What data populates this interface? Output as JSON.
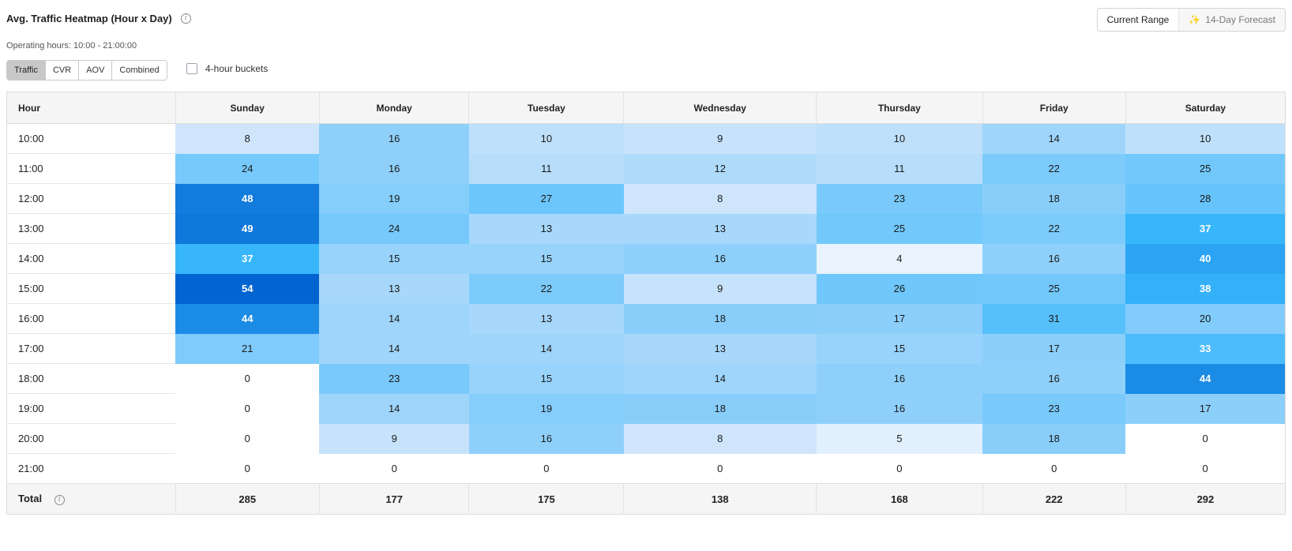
{
  "header": {
    "title": "Avg. Traffic Heatmap (Hour x Day)",
    "operating_hours": "Operating hours: 10:00 - 21:00:00"
  },
  "range_toggle": {
    "current": "Current Range",
    "forecast": "14-Day Forecast"
  },
  "metric_tabs": [
    {
      "label": "Traffic",
      "active": true
    },
    {
      "label": "CVR",
      "active": false
    },
    {
      "label": "AOV",
      "active": false
    },
    {
      "label": "Combined",
      "active": false
    }
  ],
  "bucket_toggle": {
    "label": "4-hour buckets",
    "checked": false
  },
  "table": {
    "hour_header": "Hour",
    "days": [
      "Sunday",
      "Monday",
      "Tuesday",
      "Wednesday",
      "Thursday",
      "Friday",
      "Saturday"
    ],
    "rows": [
      {
        "hour": "10:00",
        "values": [
          8,
          16,
          10,
          9,
          10,
          14,
          10
        ]
      },
      {
        "hour": "11:00",
        "values": [
          24,
          16,
          11,
          12,
          11,
          22,
          25
        ]
      },
      {
        "hour": "12:00",
        "values": [
          48,
          19,
          27,
          8,
          23,
          18,
          28
        ]
      },
      {
        "hour": "13:00",
        "values": [
          49,
          24,
          13,
          13,
          25,
          22,
          37
        ]
      },
      {
        "hour": "14:00",
        "values": [
          37,
          15,
          15,
          16,
          4,
          16,
          40
        ]
      },
      {
        "hour": "15:00",
        "values": [
          54,
          13,
          22,
          9,
          26,
          25,
          38
        ]
      },
      {
        "hour": "16:00",
        "values": [
          44,
          14,
          13,
          18,
          17,
          31,
          20
        ]
      },
      {
        "hour": "17:00",
        "values": [
          21,
          14,
          14,
          13,
          15,
          17,
          33
        ]
      },
      {
        "hour": "18:00",
        "values": [
          0,
          23,
          15,
          14,
          16,
          16,
          44
        ]
      },
      {
        "hour": "19:00",
        "values": [
          0,
          14,
          19,
          18,
          16,
          23,
          17
        ]
      },
      {
        "hour": "20:00",
        "values": [
          0,
          9,
          16,
          8,
          5,
          18,
          0
        ]
      },
      {
        "hour": "21:00",
        "values": [
          0,
          0,
          0,
          0,
          0,
          0,
          0
        ]
      }
    ],
    "total_label": "Total",
    "totals": [
      285,
      177,
      175,
      138,
      168,
      222,
      292
    ]
  },
  "colors": {
    "cell_white": "#ffffff",
    "light_cell": "#cfe5fb",
    "mid_cell": "#8fd0fb",
    "dark_cell": "#0264d0",
    "dark_text_threshold": 33
  },
  "chart_data": {
    "type": "heatmap",
    "title": "Avg. Traffic Heatmap (Hour x Day)",
    "x": [
      "Sunday",
      "Monday",
      "Tuesday",
      "Wednesday",
      "Thursday",
      "Friday",
      "Saturday"
    ],
    "y": [
      "10:00",
      "11:00",
      "12:00",
      "13:00",
      "14:00",
      "15:00",
      "16:00",
      "17:00",
      "18:00",
      "19:00",
      "20:00",
      "21:00"
    ]
  }
}
